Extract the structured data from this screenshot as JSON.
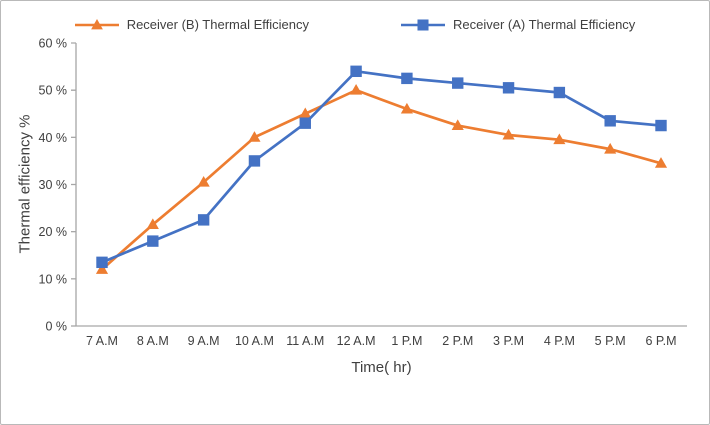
{
  "frame": {
    "background": "#ffffff",
    "border_color": "#b9b9b9"
  },
  "chart_data": {
    "type": "line",
    "title": "",
    "xlabel": "Time( hr)",
    "ylabel": "Thermal efficiency %",
    "ylim": [
      0,
      60
    ],
    "ytick_step": 10,
    "ytick_suffix": " %",
    "grid": false,
    "legend_position": "top",
    "axis_color": "#a6a6a6",
    "text_color": "#404040",
    "categories": [
      "7 A.M",
      "8 A.M",
      "9 A.M",
      "10 A.M",
      "11 A.M",
      "12 A.M",
      "1 P.M",
      "2 P.M",
      "3 P.M",
      "4 P.M",
      "5 P.M",
      "6 P.M"
    ],
    "series": [
      {
        "name": "Receiver (B) Thermal Efficiency",
        "color": "#ED7D31",
        "marker": "triangle",
        "values": [
          12,
          21.5,
          30.5,
          40,
          45,
          50,
          46,
          42.5,
          40.5,
          39.5,
          37.5,
          34.5
        ]
      },
      {
        "name": "Receiver (A) Thermal Efficiency",
        "color": "#4472C4",
        "marker": "square",
        "values": [
          13.5,
          18,
          22.5,
          35,
          43,
          54,
          52.5,
          51.5,
          50.5,
          49.5,
          43.5,
          42.5
        ]
      }
    ]
  }
}
